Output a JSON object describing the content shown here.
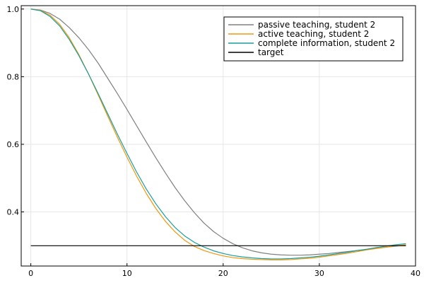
{
  "chart_data": {
    "type": "line",
    "title": "",
    "xlabel": "",
    "ylabel": "",
    "xlim": [
      -1,
      40
    ],
    "ylim": [
      0.24,
      1.01
    ],
    "grid": true,
    "legend_position": "top-right",
    "x_ticks": [
      {
        "value": 0,
        "label": "0"
      },
      {
        "value": 10,
        "label": "10"
      },
      {
        "value": 20,
        "label": "20"
      },
      {
        "value": 30,
        "label": "30"
      },
      {
        "value": 40,
        "label": "40"
      }
    ],
    "y_ticks": [
      {
        "value": 0.4,
        "label": "0.4"
      },
      {
        "value": 0.6,
        "label": "0.6"
      },
      {
        "value": 0.8,
        "label": "0.8"
      },
      {
        "value": 1.0,
        "label": "1.0"
      }
    ],
    "series": [
      {
        "name": "passive teaching, student 2",
        "color": "#808080",
        "x": [
          0,
          1,
          2,
          3,
          4,
          5,
          6,
          7,
          8,
          9,
          10,
          11,
          12,
          13,
          14,
          15,
          16,
          17,
          18,
          19,
          20,
          21,
          22,
          23,
          24,
          25,
          26,
          27,
          28,
          29,
          30,
          31,
          32,
          33,
          34,
          35,
          36,
          37,
          38,
          39
        ],
        "values": [
          1.0,
          0.997,
          0.987,
          0.97,
          0.945,
          0.915,
          0.88,
          0.84,
          0.795,
          0.75,
          0.703,
          0.655,
          0.607,
          0.56,
          0.515,
          0.472,
          0.433,
          0.398,
          0.367,
          0.342,
          0.322,
          0.306,
          0.294,
          0.285,
          0.279,
          0.275,
          0.273,
          0.272,
          0.272,
          0.273,
          0.275,
          0.277,
          0.28,
          0.283,
          0.286,
          0.289,
          0.293,
          0.296,
          0.299,
          0.302
        ]
      },
      {
        "name": "active teaching, student 2",
        "color": "#f0960f",
        "x": [
          0,
          1,
          2,
          3,
          4,
          5,
          6,
          7,
          8,
          9,
          10,
          11,
          12,
          13,
          14,
          15,
          16,
          17,
          18,
          19,
          20,
          21,
          22,
          23,
          24,
          25,
          26,
          27,
          28,
          29,
          30,
          31,
          32,
          33,
          34,
          35,
          36,
          37,
          38,
          39
        ],
        "values": [
          1.0,
          0.996,
          0.982,
          0.955,
          0.915,
          0.865,
          0.808,
          0.746,
          0.683,
          0.621,
          0.562,
          0.506,
          0.455,
          0.41,
          0.372,
          0.341,
          0.316,
          0.298,
          0.286,
          0.277,
          0.27,
          0.265,
          0.262,
          0.26,
          0.259,
          0.258,
          0.258,
          0.259,
          0.261,
          0.263,
          0.266,
          0.27,
          0.274,
          0.278,
          0.283,
          0.288,
          0.292,
          0.296,
          0.3,
          0.303
        ]
      },
      {
        "name": "complete information, student 2",
        "color": "#1a9e99",
        "x": [
          0,
          1,
          2,
          3,
          4,
          5,
          6,
          7,
          8,
          9,
          10,
          11,
          12,
          13,
          14,
          15,
          16,
          17,
          18,
          19,
          20,
          21,
          22,
          23,
          24,
          25,
          26,
          27,
          28,
          29,
          30,
          31,
          32,
          33,
          34,
          35,
          36,
          37,
          38,
          39
        ],
        "values": [
          1.0,
          0.995,
          0.978,
          0.95,
          0.91,
          0.862,
          0.808,
          0.75,
          0.69,
          0.63,
          0.573,
          0.518,
          0.468,
          0.424,
          0.386,
          0.354,
          0.329,
          0.31,
          0.296,
          0.285,
          0.277,
          0.271,
          0.267,
          0.264,
          0.262,
          0.261,
          0.261,
          0.262,
          0.264,
          0.266,
          0.269,
          0.273,
          0.277,
          0.281,
          0.286,
          0.29,
          0.295,
          0.299,
          0.303,
          0.306
        ]
      },
      {
        "name": "target",
        "color": "#000000",
        "x": [
          0,
          39
        ],
        "values": [
          0.3,
          0.3
        ]
      }
    ]
  }
}
